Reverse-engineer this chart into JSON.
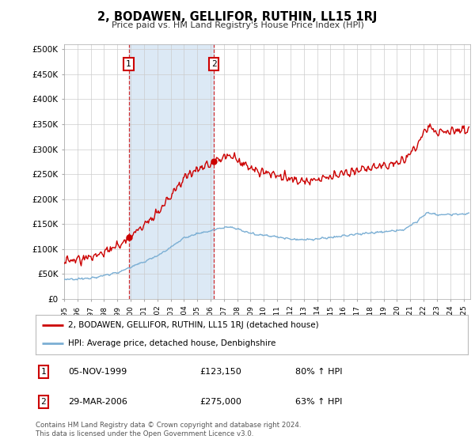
{
  "title": "2, BODAWEN, GELLIFOR, RUTHIN, LL15 1RJ",
  "subtitle": "Price paid vs. HM Land Registry's House Price Index (HPI)",
  "ylabel_ticks": [
    "£0",
    "£50K",
    "£100K",
    "£150K",
    "£200K",
    "£250K",
    "£300K",
    "£350K",
    "£400K",
    "£450K",
    "£500K"
  ],
  "ytick_values": [
    0,
    50000,
    100000,
    150000,
    200000,
    250000,
    300000,
    350000,
    400000,
    450000,
    500000
  ],
  "ylim": [
    0,
    510000
  ],
  "xlim_start": 1995.0,
  "xlim_end": 2025.5,
  "sale1_x": 1999.847,
  "sale1_y": 123150,
  "sale2_x": 2006.24,
  "sale2_y": 275000,
  "red_color": "#cc0000",
  "blue_color": "#7bafd4",
  "shaded_color": "#dce9f5",
  "legend_line1": "2, BODAWEN, GELLIFOR, RUTHIN, LL15 1RJ (detached house)",
  "legend_line2": "HPI: Average price, detached house, Denbighshire",
  "table_row1": [
    "1",
    "05-NOV-1999",
    "£123,150",
    "80% ↑ HPI"
  ],
  "table_row2": [
    "2",
    "29-MAR-2006",
    "£275,000",
    "63% ↑ HPI"
  ],
  "footer": "Contains HM Land Registry data © Crown copyright and database right 2024.\nThis data is licensed under the Open Government Licence v3.0.",
  "background_color": "#ffffff",
  "grid_color": "#cccccc"
}
